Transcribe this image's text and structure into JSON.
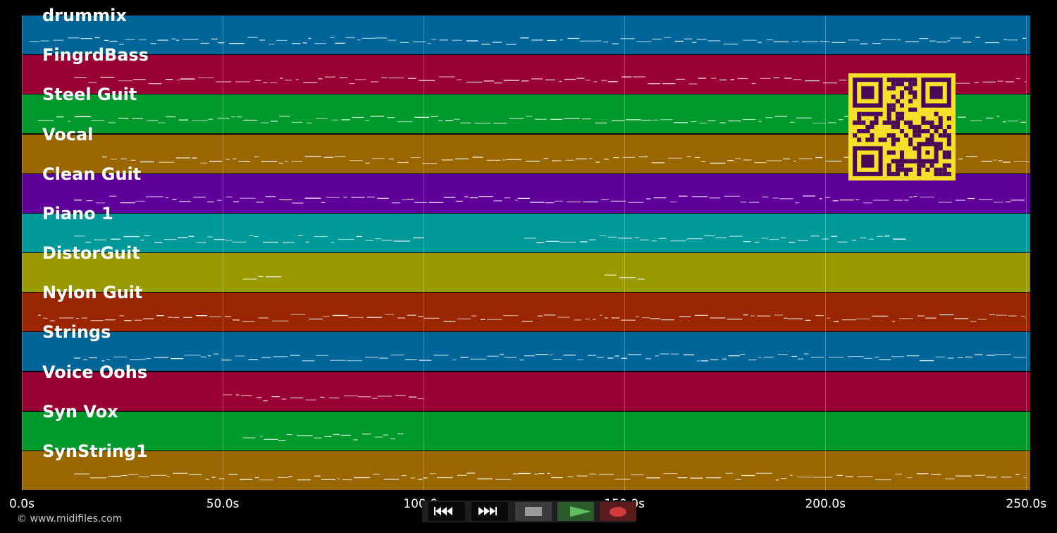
{
  "tracks": [
    {
      "name": "drummix",
      "color": "#006699"
    },
    {
      "name": "FingrdBass",
      "color": "#990033"
    },
    {
      "name": "Steel Guit",
      "color": "#00992b"
    },
    {
      "name": "Vocal",
      "color": "#996600"
    },
    {
      "name": "Clean Guit",
      "color": "#5e0099"
    },
    {
      "name": "Piano 1",
      "color": "#009999"
    },
    {
      "name": "DistorGuit",
      "color": "#999900"
    },
    {
      "name": "Nylon Guit",
      "color": "#992600"
    },
    {
      "name": "Strings",
      "color": "#006699"
    },
    {
      "name": "Voice Oohs",
      "color": "#990033"
    },
    {
      "name": "Syn Vox",
      "color": "#00992b"
    },
    {
      "name": "SynString1",
      "color": "#996600"
    }
  ],
  "timeline": {
    "range_seconds": [
      0,
      251
    ],
    "ticks": [
      {
        "value": 0,
        "label": "0.0s"
      },
      {
        "value": 50,
        "label": "50.0s"
      },
      {
        "value": 100,
        "label": "100.0s"
      },
      {
        "value": 150,
        "label": "150.0s"
      },
      {
        "value": 200,
        "label": "200.0s"
      },
      {
        "value": 250,
        "label": "250.0s"
      }
    ]
  },
  "transport": {
    "buttons": [
      {
        "name": "rewind-button",
        "icon": "rewind-icon"
      },
      {
        "name": "fast-forward-button",
        "icon": "fast-forward-icon"
      },
      {
        "name": "stop-button",
        "icon": "stop-icon"
      },
      {
        "name": "play-button",
        "icon": "play-icon"
      },
      {
        "name": "record-button",
        "icon": "record-icon"
      }
    ],
    "colors": {
      "play": "#5fbf5f",
      "record": "#d33a3a",
      "stop": "#9a9a9a"
    }
  },
  "qr": {
    "color_fg": "#4a0a5a",
    "color_bg": "#f5e02a"
  },
  "copyright": "© www.midifiles.com"
}
